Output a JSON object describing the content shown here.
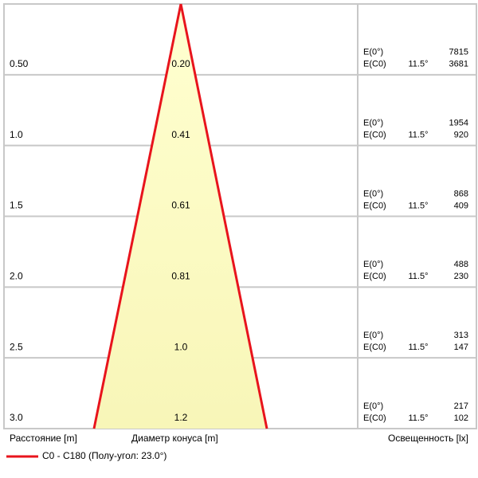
{
  "rows": [
    {
      "distance": "0.50",
      "diameter": "0.20",
      "e0_label": "E(0°)",
      "ec0_label": "E(C0)",
      "angle": "11.5°",
      "e0_value": "7815",
      "ec0_value": "3681"
    },
    {
      "distance": "1.0",
      "diameter": "0.41",
      "e0_label": "E(0°)",
      "ec0_label": "E(C0)",
      "angle": "11.5°",
      "e0_value": "1954",
      "ec0_value": "920"
    },
    {
      "distance": "1.5",
      "diameter": "0.61",
      "e0_label": "E(0°)",
      "ec0_label": "E(C0)",
      "angle": "11.5°",
      "e0_value": "868",
      "ec0_value": "409"
    },
    {
      "distance": "2.0",
      "diameter": "0.81",
      "e0_label": "E(0°)",
      "ec0_label": "E(C0)",
      "angle": "11.5°",
      "e0_value": "488",
      "ec0_value": "230"
    },
    {
      "distance": "2.5",
      "diameter": "1.0",
      "e0_label": "E(0°)",
      "ec0_label": "E(C0)",
      "angle": "11.5°",
      "e0_value": "313",
      "ec0_value": "147"
    },
    {
      "distance": "3.0",
      "diameter": "1.2",
      "e0_label": "E(0°)",
      "ec0_label": "E(C0)",
      "angle": "11.5°",
      "e0_value": "217",
      "ec0_value": "102"
    }
  ],
  "footer": {
    "distance_label": "Расстояние [m]",
    "diameter_label": "Диаметр конуса [m]",
    "illuminance_label": "Освещенность [lx]"
  },
  "legend": {
    "label": "C0 - C180 (Полу-угол: 23.0°)"
  }
}
